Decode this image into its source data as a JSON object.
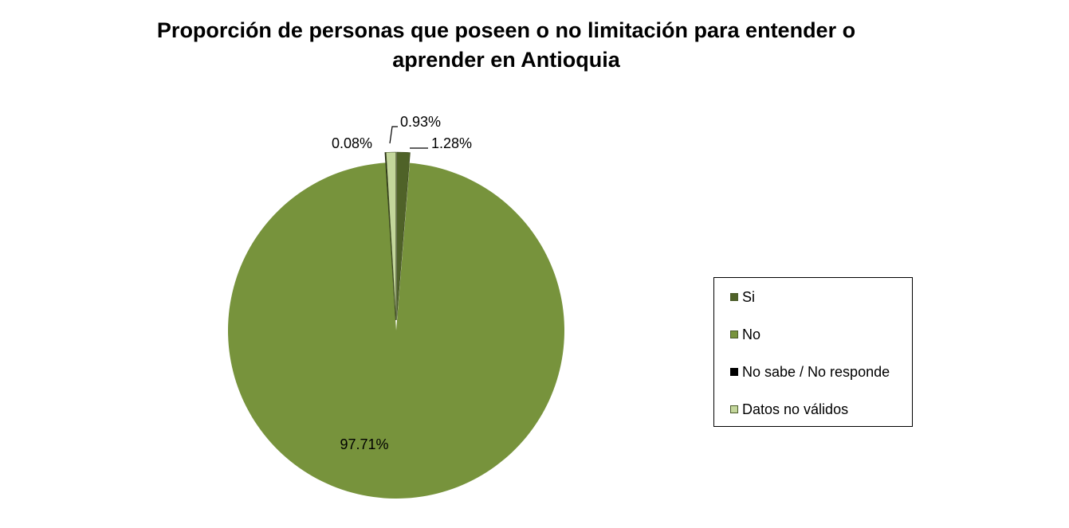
{
  "chart_data": {
    "type": "pie",
    "title_lines": [
      "Proporción de personas que poseen o no limitación para entender o",
      "aprender en Antioquia"
    ],
    "categories": [
      "Si",
      "No",
      "No sabe / No responde",
      "Datos no válidos"
    ],
    "values": [
      1.28,
      97.71,
      0.08,
      0.93
    ],
    "labels": [
      "1.28%",
      "97.71%",
      "0.08%",
      "0.93%"
    ],
    "colors": [
      "#4f6228",
      "#77933c",
      "#000000",
      "#c3d69b"
    ],
    "legend_position": "right"
  }
}
